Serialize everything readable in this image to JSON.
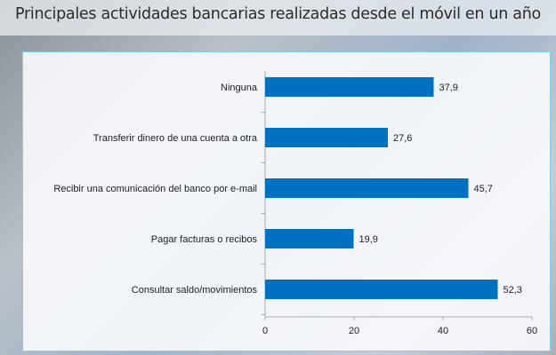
{
  "chart_data": {
    "type": "bar",
    "orientation": "horizontal",
    "title": "Principales actividades bancarias realizadas desde el móvil en un año",
    "categories": [
      "Ninguna",
      "Transferir dinero de una cuenta a otra",
      "Recibir una comunicación del banco por e-mail",
      "Pagar facturas o recibos",
      "Consultar saldo/movimientos"
    ],
    "values": [
      37.9,
      27.6,
      45.7,
      19.9,
      52.3
    ],
    "value_labels": [
      "37,9",
      "27,6",
      "45,7",
      "19,9",
      "52,3"
    ],
    "xlim": [
      0,
      60
    ],
    "xticks": [
      0,
      20,
      40,
      60
    ],
    "xtick_labels": [
      "0",
      "20",
      "40",
      "60"
    ],
    "grid": false,
    "bar_color": "#0070c0",
    "panel_border_color": "#7fd0e6"
  }
}
